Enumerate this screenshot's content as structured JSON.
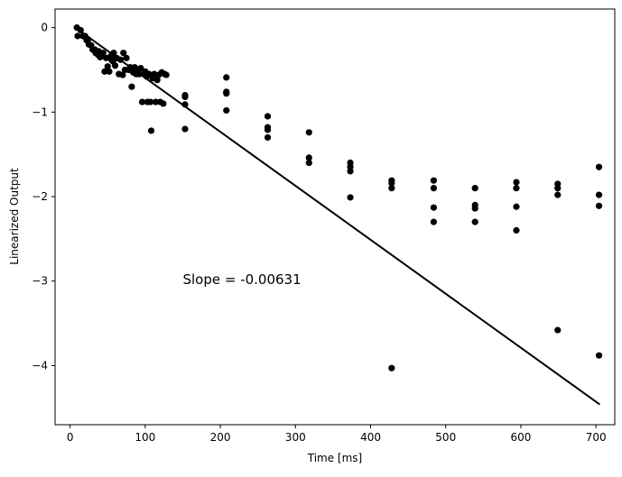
{
  "chart_data": {
    "type": "scatter",
    "title": "",
    "xlabel": "Time [ms]",
    "ylabel": "Linearized Output",
    "xlim": [
      -20,
      725
    ],
    "ylim": [
      -4.7,
      0.22
    ],
    "xticks": [
      0,
      100,
      200,
      300,
      400,
      500,
      600,
      700
    ],
    "yticks": [
      -4,
      -3,
      -2,
      -1,
      0
    ],
    "xtick_labels": [
      "0",
      "100",
      "200",
      "300",
      "400",
      "500",
      "600",
      "700"
    ],
    "ytick_labels": [
      "−4",
      "−3",
      "−2",
      "−1",
      "0"
    ],
    "grid": false,
    "annotation": {
      "text": "Slope = -0.00631",
      "x": 150,
      "y": -2.98
    },
    "fit_line": {
      "slope": -0.00631,
      "x": [
        10,
        705
      ],
      "y": [
        -0.02,
        -4.46
      ]
    },
    "marker_color": "#000000",
    "points": [
      [
        9,
        0.0
      ],
      [
        10,
        -0.1
      ],
      [
        14,
        -0.03
      ],
      [
        17,
        -0.1
      ],
      [
        20,
        -0.1
      ],
      [
        22,
        -0.15
      ],
      [
        24,
        -0.14
      ],
      [
        25,
        -0.2
      ],
      [
        28,
        -0.21
      ],
      [
        30,
        -0.26
      ],
      [
        33,
        -0.26
      ],
      [
        34,
        -0.3
      ],
      [
        37,
        -0.32
      ],
      [
        38,
        -0.28
      ],
      [
        40,
        -0.35
      ],
      [
        42,
        -0.32
      ],
      [
        44,
        -0.3
      ],
      [
        46,
        -0.52
      ],
      [
        48,
        -0.36
      ],
      [
        50,
        -0.46
      ],
      [
        52,
        -0.52
      ],
      [
        54,
        -0.34
      ],
      [
        55,
        -0.38
      ],
      [
        57,
        -0.4
      ],
      [
        58,
        -0.3
      ],
      [
        60,
        -0.45
      ],
      [
        62,
        -0.36
      ],
      [
        65,
        -0.55
      ],
      [
        67,
        -0.38
      ],
      [
        70,
        -0.56
      ],
      [
        71,
        -0.3
      ],
      [
        73,
        -0.5
      ],
      [
        75,
        -0.36
      ],
      [
        78,
        -0.5
      ],
      [
        80,
        -0.47
      ],
      [
        82,
        -0.7
      ],
      [
        84,
        -0.53
      ],
      [
        86,
        -0.47
      ],
      [
        88,
        -0.55
      ],
      [
        90,
        -0.5
      ],
      [
        92,
        -0.55
      ],
      [
        94,
        -0.48
      ],
      [
        96,
        -0.88
      ],
      [
        98,
        -0.55
      ],
      [
        100,
        -0.52
      ],
      [
        102,
        -0.58
      ],
      [
        103,
        -0.88
      ],
      [
        105,
        -0.55
      ],
      [
        107,
        -0.88
      ],
      [
        108,
        -1.22
      ],
      [
        110,
        -0.6
      ],
      [
        112,
        -0.55
      ],
      [
        114,
        -0.88
      ],
      [
        116,
        -0.62
      ],
      [
        118,
        -0.56
      ],
      [
        120,
        -0.88
      ],
      [
        122,
        -0.53
      ],
      [
        124,
        -0.9
      ],
      [
        126,
        -0.55
      ],
      [
        128,
        -0.56
      ],
      [
        153,
        -0.8
      ],
      [
        153,
        -0.82
      ],
      [
        153,
        -0.91
      ],
      [
        153,
        -1.2
      ],
      [
        208,
        -0.59
      ],
      [
        208,
        -0.76
      ],
      [
        208,
        -0.78
      ],
      [
        208,
        -0.98
      ],
      [
        263,
        -1.05
      ],
      [
        263,
        -1.18
      ],
      [
        263,
        -1.21
      ],
      [
        263,
        -1.3
      ],
      [
        318,
        -1.24
      ],
      [
        318,
        -1.54
      ],
      [
        318,
        -1.6
      ],
      [
        373,
        -1.6
      ],
      [
        373,
        -1.65
      ],
      [
        373,
        -1.7
      ],
      [
        373,
        -2.01
      ],
      [
        428,
        -1.81
      ],
      [
        428,
        -1.84
      ],
      [
        428,
        -1.9
      ],
      [
        428,
        -4.03
      ],
      [
        484,
        -1.81
      ],
      [
        484,
        -1.9
      ],
      [
        484,
        -2.13
      ],
      [
        484,
        -2.3
      ],
      [
        539,
        -1.9
      ],
      [
        539,
        -2.1
      ],
      [
        539,
        -2.14
      ],
      [
        539,
        -2.3
      ],
      [
        594,
        -1.83
      ],
      [
        594,
        -1.9
      ],
      [
        594,
        -2.12
      ],
      [
        594,
        -2.4
      ],
      [
        649,
        -1.85
      ],
      [
        649,
        -1.9
      ],
      [
        649,
        -1.98
      ],
      [
        649,
        -3.58
      ],
      [
        704,
        -1.65
      ],
      [
        704,
        -1.98
      ],
      [
        704,
        -2.11
      ],
      [
        704,
        -3.88
      ]
    ]
  }
}
